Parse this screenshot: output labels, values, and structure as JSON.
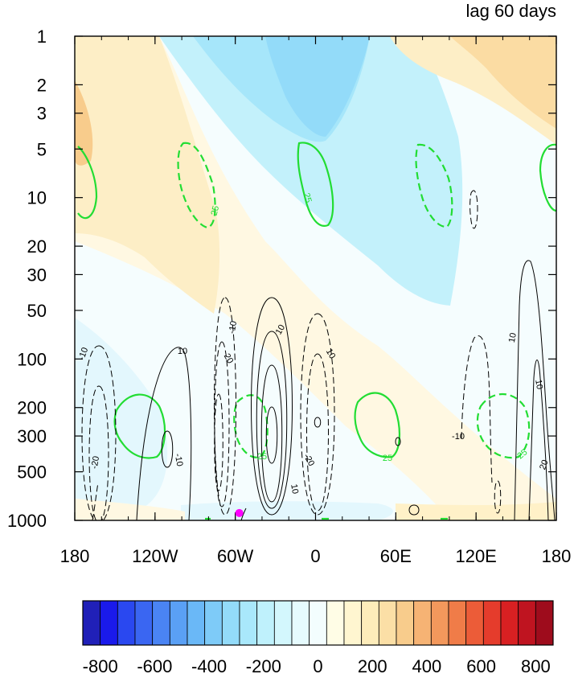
{
  "chart_data": {
    "type": "heatmap",
    "title": "lag 60 days",
    "x_axis": {
      "range": [
        -180,
        180
      ],
      "ticks": [
        {
          "value": -180,
          "label": "180"
        },
        {
          "value": -120,
          "label": "120W"
        },
        {
          "value": -60,
          "label": "60W"
        },
        {
          "value": 0,
          "label": "0"
        },
        {
          "value": 60,
          "label": "60E"
        },
        {
          "value": 120,
          "label": "120E"
        },
        {
          "value": 180,
          "label": "180"
        }
      ]
    },
    "y_axis": {
      "scale": "log",
      "reversed": true,
      "range": [
        1,
        1000
      ],
      "ticks": [
        {
          "value": 1,
          "label": "1"
        },
        {
          "value": 2,
          "label": "2"
        },
        {
          "value": 3,
          "label": "3"
        },
        {
          "value": 5,
          "label": "5"
        },
        {
          "value": 10,
          "label": "10"
        },
        {
          "value": 20,
          "label": "20"
        },
        {
          "value": 30,
          "label": "30"
        },
        {
          "value": 50,
          "label": "50"
        },
        {
          "value": 100,
          "label": "100"
        },
        {
          "value": 200,
          "label": "200"
        },
        {
          "value": 300,
          "label": "300"
        },
        {
          "value": 500,
          "label": "500"
        },
        {
          "value": 1000,
          "label": "1000"
        }
      ]
    },
    "colorbar": {
      "min": -800,
      "max": 800,
      "step": 50,
      "labels": [
        "-800",
        "-600",
        "-400",
        "-200",
        "0",
        "200",
        "400",
        "600",
        "800"
      ],
      "colors": [
        "#2020b8",
        "#1a1aeb",
        "#2a48f0",
        "#3a66f2",
        "#4a84f4",
        "#5aa0f5",
        "#6ab8f7",
        "#7ecbf8",
        "#93dbf9",
        "#a9e8fb",
        "#bff1fc",
        "#d3f7fd",
        "#e6fbfe",
        "#f3fdfe",
        "#fffde6",
        "#fff6d0",
        "#fdecba",
        "#fbdfa6",
        "#f8cc8c",
        "#f6b374",
        "#f3985c",
        "#f07c48",
        "#ec5c38",
        "#e53c2c",
        "#d82022",
        "#bf1420",
        "#9e0c1c"
      ]
    },
    "marker": {
      "lon": -57,
      "p": 900,
      "color": "#ff00ff"
    },
    "shaded_anomalies": [
      {
        "sign": "positive",
        "value": 150,
        "lon": -158,
        "p": 6
      },
      {
        "sign": "positive",
        "value": 250,
        "lon": -172,
        "p": 4
      },
      {
        "sign": "positive",
        "value": 150,
        "lon": 150,
        "p": 3
      },
      {
        "sign": "positive",
        "value": 300,
        "lon": 172,
        "p": 2
      },
      {
        "sign": "negative",
        "value": -250,
        "lon": -20,
        "p": 2
      },
      {
        "sign": "negative",
        "value": -150,
        "lon": 10,
        "p": 10
      },
      {
        "sign": "negative",
        "value": -100,
        "lon": -170,
        "p": 300
      },
      {
        "sign": "positive",
        "value": 50,
        "lon": 0,
        "p": 300
      }
    ],
    "green_contours": [
      {
        "label": "25",
        "dashed": false
      },
      {
        "label": "25",
        "dashed": true
      }
    ],
    "black_contour_labels": [
      "-10",
      "10",
      "-20",
      "20"
    ]
  }
}
